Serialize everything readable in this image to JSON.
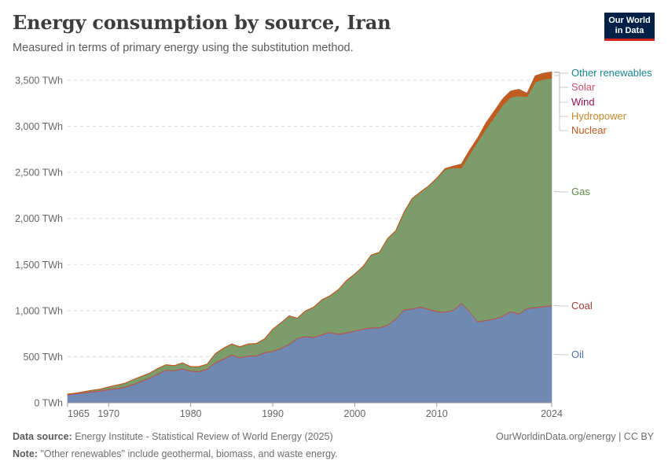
{
  "title": "Energy consumption by source, Iran",
  "subtitle": "Measured in terms of primary energy using the substitution method.",
  "logo": {
    "line1": "Our World",
    "line2": "in Data"
  },
  "footer": {
    "source_label": "Data source:",
    "source_text": "Energy Institute - Statistical Review of World Energy (2025)",
    "url": "OurWorldinData.org/energy | CC BY",
    "note_label": "Note:",
    "note_text": "\"Other renewables\" include geothermal, biomass, and waste energy."
  },
  "colors": {
    "Oil": "#6d87b1",
    "Coal": "#b8514a",
    "Gas": "#7a9a68",
    "Nuclear": "#c0591c",
    "Hydropower": "#c78828",
    "Wind": "#8e1257",
    "Solar": "#d24e6f",
    "Other renewables": "#16868e"
  },
  "chart_data": {
    "type": "area",
    "stacked": true,
    "title": "Energy consumption by source, Iran",
    "unit": "TWh",
    "xlim": [
      1965,
      2024
    ],
    "ylim": [
      0,
      3500
    ],
    "y_ticks": [
      0,
      500,
      1000,
      1500,
      2000,
      2500,
      3000,
      3500
    ],
    "y_tick_labels": [
      "0 TWh",
      "500 TWh",
      "1,000 TWh",
      "1,500 TWh",
      "2,000 TWh",
      "2,500 TWh",
      "3,000 TWh",
      "3,500 TWh"
    ],
    "x_ticks": [
      1965,
      1970,
      1980,
      1990,
      2000,
      2010,
      2024
    ],
    "x_tick_labels": [
      "1965",
      "1970",
      "1980",
      "1990",
      "2000",
      "2010",
      "2024"
    ],
    "grid": "horizontal dashed",
    "x": [
      1965,
      1966,
      1967,
      1968,
      1969,
      1970,
      1971,
      1972,
      1973,
      1974,
      1975,
      1976,
      1977,
      1978,
      1979,
      1980,
      1981,
      1982,
      1983,
      1984,
      1985,
      1986,
      1987,
      1988,
      1989,
      1990,
      1991,
      1992,
      1993,
      1994,
      1995,
      1996,
      1997,
      1998,
      1999,
      2000,
      2001,
      2002,
      2003,
      2004,
      2005,
      2006,
      2007,
      2008,
      2009,
      2010,
      2011,
      2012,
      2013,
      2014,
      2015,
      2016,
      2017,
      2018,
      2019,
      2020,
      2021,
      2022,
      2023,
      2024
    ],
    "series": [
      {
        "name": "Oil",
        "values": [
          85,
          95,
          105,
          115,
          125,
          140,
          150,
          165,
          195,
          230,
          265,
          310,
          350,
          345,
          365,
          340,
          335,
          360,
          430,
          470,
          515,
          485,
          505,
          505,
          540,
          555,
          585,
          630,
          695,
          715,
          705,
          735,
          760,
          740,
          755,
          775,
          795,
          810,
          810,
          840,
          905,
          1005,
          1015,
          1035,
          1010,
          985,
          980,
          1000,
          1075,
          985,
          875,
          890,
          905,
          935,
          985,
          960,
          1020,
          1030,
          1040,
          1050
        ]
      },
      {
        "name": "Coal",
        "values": [
          10,
          10,
          10,
          10,
          10,
          10,
          10,
          10,
          10,
          10,
          10,
          10,
          10,
          10,
          10,
          10,
          10,
          10,
          10,
          10,
          10,
          10,
          10,
          10,
          10,
          10,
          10,
          10,
          10,
          10,
          10,
          10,
          10,
          10,
          10,
          10,
          10,
          10,
          10,
          10,
          10,
          10,
          10,
          10,
          10,
          10,
          10,
          10,
          10,
          10,
          10,
          10,
          10,
          10,
          10,
          10,
          10,
          10,
          10,
          10
        ]
      },
      {
        "name": "Gas",
        "values": [
          0,
          0,
          5,
          10,
          12,
          20,
          30,
          35,
          45,
          45,
          45,
          50,
          50,
          45,
          55,
          40,
          45,
          45,
          90,
          110,
          110,
          110,
          120,
          125,
          140,
          230,
          270,
          300,
          210,
          270,
          320,
          370,
          390,
          475,
          560,
          610,
          670,
          780,
          810,
          930,
          950,
          1050,
          1190,
          1240,
          1330,
          1440,
          1540,
          1540,
          1460,
          1700,
          1950,
          2070,
          2180,
          2280,
          2320,
          2360,
          2290,
          2440,
          2460,
          2460
        ]
      },
      {
        "name": "Nuclear",
        "values": [
          0,
          0,
          0,
          0,
          0,
          0,
          0,
          0,
          0,
          0,
          0,
          0,
          0,
          0,
          0,
          0,
          0,
          0,
          0,
          0,
          0,
          0,
          0,
          0,
          0,
          0,
          0,
          0,
          0,
          0,
          0,
          0,
          0,
          0,
          0,
          0,
          0,
          0,
          0,
          0,
          0,
          0,
          0,
          0,
          0,
          0,
          7,
          14,
          42,
          43,
          37,
          65,
          66,
          65,
          64,
          65,
          32,
          61,
          58,
          62
        ]
      },
      {
        "name": "Hydropower",
        "values": [
          0,
          0,
          1,
          1,
          1,
          2,
          2,
          2,
          2,
          2,
          2,
          3,
          3,
          3,
          3,
          3,
          3,
          3,
          3,
          3,
          3,
          3,
          3,
          3,
          3,
          3,
          3,
          3,
          3,
          3,
          3,
          3,
          3,
          3,
          3,
          3,
          3,
          3,
          3,
          3,
          3,
          3,
          3,
          3,
          3,
          3,
          3,
          3,
          3,
          3,
          3,
          3,
          3,
          3,
          3,
          3,
          3,
          3,
          3,
          3
        ]
      },
      {
        "name": "Wind",
        "values": [
          0,
          0,
          0,
          0,
          0,
          0,
          0,
          0,
          0,
          0,
          0,
          0,
          0,
          0,
          0,
          0,
          0,
          0,
          0,
          0,
          0,
          0,
          0,
          0,
          0,
          0,
          0,
          0,
          0,
          0,
          0,
          0,
          0,
          0,
          0,
          0,
          0,
          0,
          0,
          0,
          0,
          0,
          0,
          0,
          0,
          0,
          0,
          0,
          0,
          0,
          0,
          0,
          0,
          0,
          0,
          1,
          1,
          1,
          1,
          1
        ]
      },
      {
        "name": "Solar",
        "values": [
          0,
          0,
          0,
          0,
          0,
          0,
          0,
          0,
          0,
          0,
          0,
          0,
          0,
          0,
          0,
          0,
          0,
          0,
          0,
          0,
          0,
          0,
          0,
          0,
          0,
          0,
          0,
          0,
          0,
          0,
          0,
          0,
          0,
          0,
          0,
          0,
          0,
          0,
          0,
          0,
          0,
          0,
          0,
          0,
          0,
          0,
          0,
          0,
          0,
          0,
          0,
          0,
          0,
          0,
          0,
          1,
          1,
          2,
          3,
          3
        ]
      },
      {
        "name": "Other renewables",
        "values": [
          0,
          0,
          0,
          0,
          0,
          0,
          0,
          0,
          0,
          0,
          0,
          0,
          0,
          0,
          0,
          0,
          0,
          0,
          0,
          0,
          0,
          0,
          0,
          0,
          0,
          0,
          0,
          0,
          0,
          0,
          0,
          0,
          0,
          0,
          0,
          0,
          0,
          0,
          0,
          0,
          0,
          0,
          0,
          0,
          0,
          0,
          0,
          0,
          0,
          0,
          0,
          0,
          0,
          0,
          0,
          1,
          1,
          1,
          1,
          1
        ]
      }
    ],
    "legend": [
      "Other renewables",
      "Solar",
      "Wind",
      "Hydropower",
      "Nuclear",
      "Gas",
      "Coal",
      "Oil"
    ],
    "legend_placement": "right, inline labels"
  }
}
